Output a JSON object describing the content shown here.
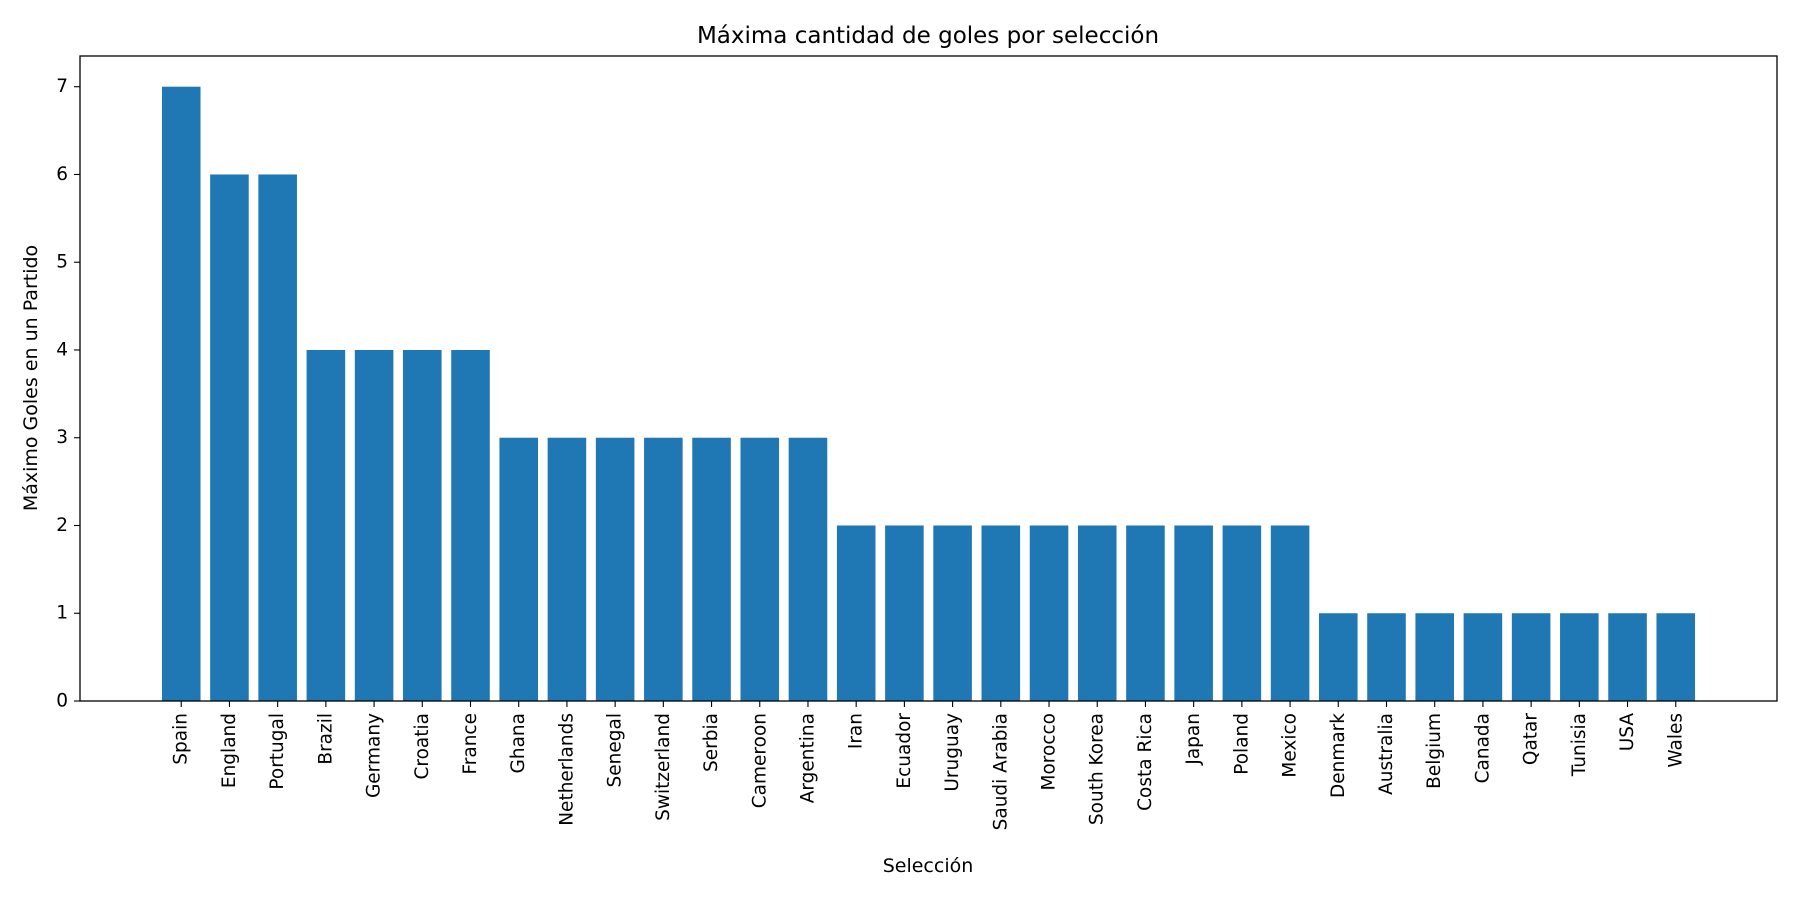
{
  "chart_data": {
    "type": "bar",
    "title": "Máxima cantidad de goles por selección",
    "xlabel": "Selección",
    "ylabel": "Máximo Goles en un Partido",
    "categories": [
      "Spain",
      "England",
      "Portugal",
      "Brazil",
      "Germany",
      "Croatia",
      "France",
      "Ghana",
      "Netherlands",
      "Senegal",
      "Switzerland",
      "Serbia",
      "Cameroon",
      "Argentina",
      "Iran",
      "Ecuador",
      "Uruguay",
      "Saudi Arabia",
      "Morocco",
      "South Korea",
      "Costa Rica",
      "Japan",
      "Poland",
      "Mexico",
      "Denmark",
      "Australia",
      "Belgium",
      "Canada",
      "Qatar",
      "Tunisia",
      "USA",
      "Wales"
    ],
    "values": [
      7,
      6,
      6,
      4,
      4,
      4,
      4,
      3,
      3,
      3,
      3,
      3,
      3,
      3,
      2,
      2,
      2,
      2,
      2,
      2,
      2,
      2,
      2,
      2,
      1,
      1,
      1,
      1,
      1,
      1,
      1,
      1
    ],
    "ylim": [
      0,
      7.35
    ],
    "yticks": [
      0,
      1,
      2,
      3,
      4,
      5,
      6,
      7
    ],
    "bar_color": "#1f77b4",
    "grid": false,
    "legend": "none"
  }
}
